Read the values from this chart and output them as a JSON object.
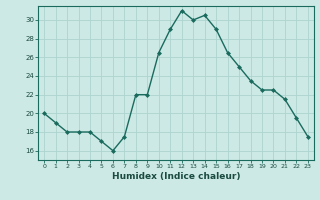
{
  "x": [
    0,
    1,
    2,
    3,
    4,
    5,
    6,
    7,
    8,
    9,
    10,
    11,
    12,
    13,
    14,
    15,
    16,
    17,
    18,
    19,
    20,
    21,
    22,
    23
  ],
  "y": [
    20,
    19,
    18,
    18,
    18,
    17,
    16,
    17.5,
    22,
    22,
    26.5,
    29,
    31,
    30,
    30.5,
    29,
    26.5,
    25,
    23.5,
    22.5,
    22.5,
    21.5,
    19.5,
    17.5
  ],
  "xlabel": "Humidex (Indice chaleur)",
  "xlim": [
    -0.5,
    23.5
  ],
  "ylim": [
    15.0,
    31.5
  ],
  "yticks": [
    16,
    18,
    20,
    22,
    24,
    26,
    28,
    30
  ],
  "xticks": [
    0,
    1,
    2,
    3,
    4,
    5,
    6,
    7,
    8,
    9,
    10,
    11,
    12,
    13,
    14,
    15,
    16,
    17,
    18,
    19,
    20,
    21,
    22,
    23
  ],
  "line_color": "#1a6b5e",
  "marker_color": "#1a6b5e",
  "bg_color": "#cce9e5",
  "grid_color": "#aed4cf",
  "plot_bg": "#cce9e5"
}
